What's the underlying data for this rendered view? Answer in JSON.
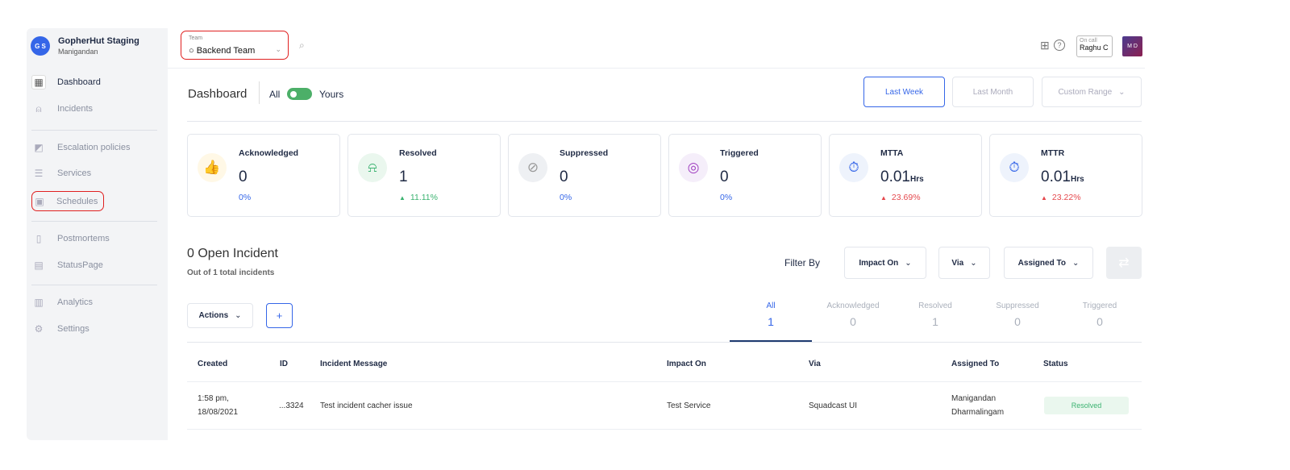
{
  "org": {
    "initials": "G S",
    "name": "GopherHut Staging",
    "user": "Manigandan"
  },
  "sidebar": {
    "items": [
      {
        "label": "Dashboard",
        "icon": "dashboard-icon"
      },
      {
        "label": "Incidents",
        "icon": "siren-icon"
      },
      {
        "label": "Escalation policies",
        "icon": "escalation-icon"
      },
      {
        "label": "Services",
        "icon": "services-icon"
      },
      {
        "label": "Schedules",
        "icon": "calendar-icon"
      },
      {
        "label": "Postmortems",
        "icon": "clipboard-icon"
      },
      {
        "label": "StatusPage",
        "icon": "document-check-icon"
      },
      {
        "label": "Analytics",
        "icon": "chart-icon"
      },
      {
        "label": "Settings",
        "icon": "gear-icon"
      }
    ]
  },
  "header": {
    "team_label": "Team",
    "team_value": "Backend Team",
    "oncall_label": "On call",
    "oncall_user": "Raghu C",
    "user_initials": "M D"
  },
  "dashboard": {
    "title": "Dashboard",
    "toggle_all": "All",
    "toggle_yours": "Yours",
    "toggle_on": true,
    "ranges": [
      "Last Week",
      "Last Month",
      "Custom Range"
    ]
  },
  "cards": [
    {
      "title": "Acknowledged",
      "value": "0",
      "unit": "",
      "change": "0%",
      "trend": "none"
    },
    {
      "title": "Resolved",
      "value": "1",
      "unit": "",
      "change": "11.11%",
      "trend": "up-green"
    },
    {
      "title": "Suppressed",
      "value": "0",
      "unit": "",
      "change": "0%",
      "trend": "none"
    },
    {
      "title": "Triggered",
      "value": "0",
      "unit": "",
      "change": "0%",
      "trend": "none"
    },
    {
      "title": "MTTA",
      "value": "0.01",
      "unit": "Hrs",
      "change": "23.69%",
      "trend": "up-red"
    },
    {
      "title": "MTTR",
      "value": "0.01",
      "unit": "Hrs",
      "change": "23.22%",
      "trend": "up-red"
    }
  ],
  "incidents": {
    "title": "0 Open Incident",
    "subtitle": "Out of 1 total incidents",
    "filter_by": "Filter By",
    "filters": [
      "Impact On",
      "Via",
      "Assigned To"
    ],
    "actions": "Actions",
    "add": "+",
    "tabs": [
      {
        "label": "All",
        "count": "1"
      },
      {
        "label": "Acknowledged",
        "count": "0"
      },
      {
        "label": "Resolved",
        "count": "1"
      },
      {
        "label": "Suppressed",
        "count": "0"
      },
      {
        "label": "Triggered",
        "count": "0"
      }
    ],
    "columns": [
      "Created",
      "ID",
      "Incident Message",
      "Impact On",
      "Via",
      "Assigned To",
      "Status"
    ],
    "rows": [
      {
        "created_time": "1:58 pm,",
        "created_date": "18/08/2021",
        "id": "...3324",
        "message": "Test incident cacher issue",
        "impact": "Test Service",
        "via": "Squadcast UI",
        "assigned_first": "Manigandan",
        "assigned_last": "Dharmalingam",
        "status": "Resolved"
      }
    ]
  },
  "colors": {
    "accent": "#3566e8",
    "green": "#3cb371",
    "red": "#e5484d",
    "highlight": "#e02020"
  }
}
